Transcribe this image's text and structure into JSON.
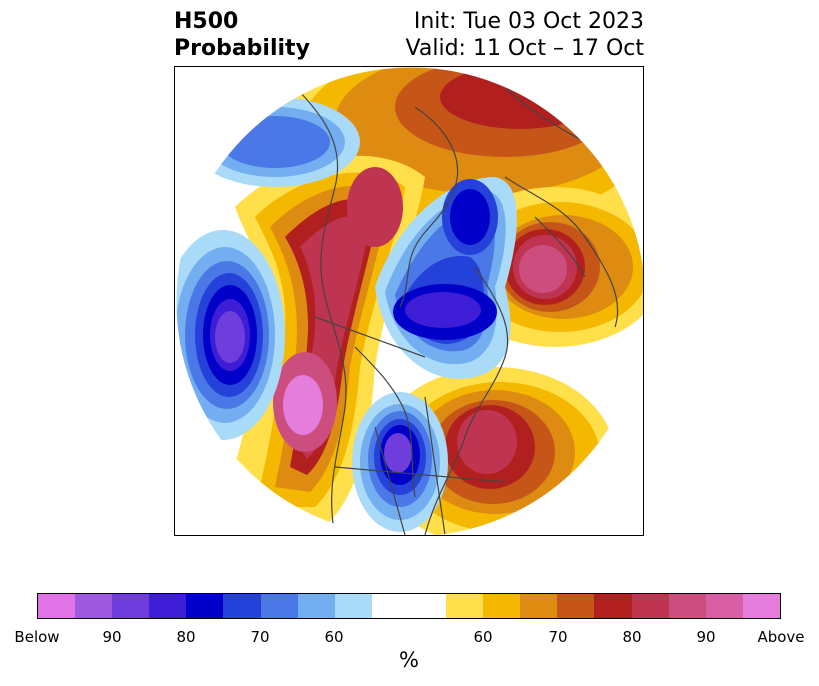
{
  "header": {
    "title_line1": "H500",
    "title_line2": "Probability",
    "init": "Init: Tue 03 Oct 2023",
    "valid": "Valid: 11 Oct – 17 Oct"
  },
  "colorbar": {
    "unit": "%",
    "colors": [
      "#e173e6",
      "#9d5ae0",
      "#6e3ddb",
      "#3d1ed6",
      "#0000c8",
      "#2441d9",
      "#4a78e6",
      "#73aef0",
      "#a9daf7",
      "#ffffff",
      "#ffe04a",
      "#f4b800",
      "#de8b12",
      "#c65618",
      "#b1201f",
      "#bf3551",
      "#cb4e7e",
      "#d95fa5",
      "#e57ddc"
    ],
    "tick_labels": [
      "Below",
      "90",
      "80",
      "70",
      "60",
      "60",
      "70",
      "80",
      "90",
      "Above"
    ]
  },
  "map": {
    "below_colors": {
      "c60": "#a9daf7",
      "c65": "#73aef0",
      "c70": "#4a78e6",
      "c75": "#2441d9",
      "c80": "#0000c8",
      "c85": "#3d1ed6",
      "c90": "#6e3ddb",
      "c95": "#9d5ae0"
    },
    "above_colors": {
      "c60": "#ffe04a",
      "c65": "#f4b800",
      "c70": "#de8b12",
      "c75": "#c65618",
      "c80": "#b1201f",
      "c85": "#bf3551",
      "c90": "#cb4e7e",
      "c95": "#d95fa5",
      "c100": "#e57ddc"
    },
    "border_color": "#444444"
  }
}
